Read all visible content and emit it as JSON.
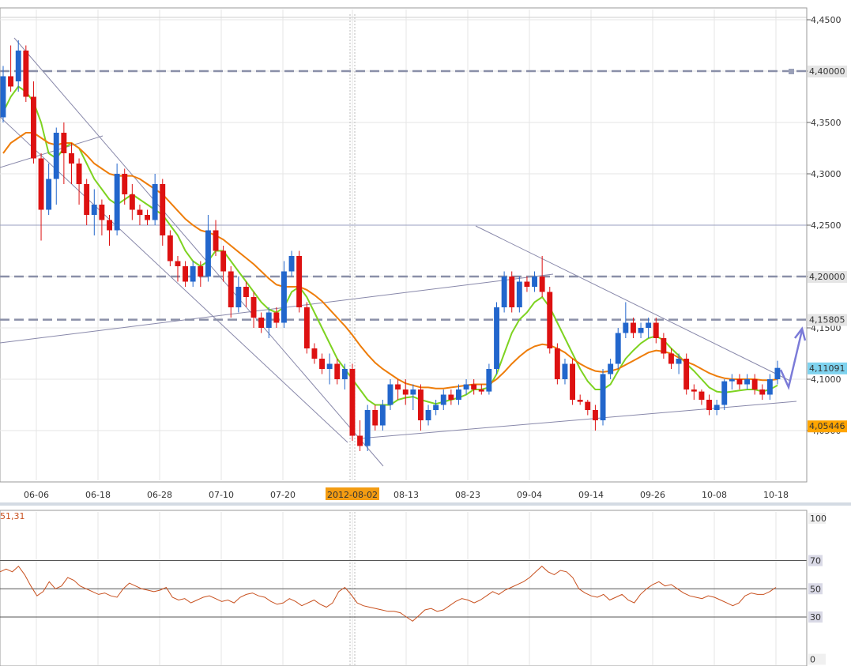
{
  "chart_data": [
    {
      "type": "candlestick",
      "x_axis": {
        "tick_labels": [
          "06-06",
          "06-18",
          "06-28",
          "07-10",
          "07-20",
          "2012-08-02",
          "08-13",
          "08-23",
          "09-04",
          "09-14",
          "09-26",
          "10-08",
          "10-18"
        ],
        "highlighted_label": "2012-08-02"
      },
      "y_axis": {
        "min": 4.02,
        "max": 4.45,
        "tick_labels": [
          "4,4500",
          "4,4000",
          "4,3500",
          "4,3000",
          "4,2500",
          "4,2000",
          "4,1500",
          "4,1000",
          "4,0500"
        ],
        "ticks": [
          4.45,
          4.4,
          4.35,
          4.3,
          4.25,
          4.2,
          4.15,
          4.1,
          4.05
        ]
      },
      "price_tags": [
        {
          "label": "4,40000",
          "value": 4.4,
          "color": "#e5e5e5"
        },
        {
          "label": "4,20000",
          "value": 4.2,
          "color": "#e5e5e5"
        },
        {
          "label": "4,15805",
          "value": 4.15805,
          "color": "#e5e5e5"
        },
        {
          "label": "4,11091",
          "value": 4.11091,
          "color": "#7fd3ef"
        },
        {
          "label": "4,05446",
          "value": 4.05446,
          "color": "#ffa500"
        }
      ],
      "horizontal_lines": [
        {
          "value": 4.4,
          "style": "dashed"
        },
        {
          "value": 4.2,
          "style": "dashed"
        },
        {
          "value": 4.158,
          "style": "dashed"
        },
        {
          "value": 4.25,
          "style": "solid"
        }
      ],
      "candles": [
        [
          4.355,
          4.405,
          4.35,
          4.395
        ],
        [
          4.395,
          4.425,
          4.38,
          4.385
        ],
        [
          4.39,
          4.43,
          4.38,
          4.42
        ],
        [
          4.42,
          4.425,
          4.37,
          4.375
        ],
        [
          4.375,
          4.39,
          4.31,
          4.315
        ],
        [
          4.315,
          4.32,
          4.235,
          4.265
        ],
        [
          4.265,
          4.31,
          4.26,
          4.295
        ],
        [
          4.295,
          4.345,
          4.27,
          4.34
        ],
        [
          4.34,
          4.35,
          4.29,
          4.32
        ],
        [
          4.32,
          4.33,
          4.29,
          4.31
        ],
        [
          4.31,
          4.315,
          4.27,
          4.29
        ],
        [
          4.29,
          4.295,
          4.25,
          4.26
        ],
        [
          4.26,
          4.285,
          4.24,
          4.27
        ],
        [
          4.27,
          4.275,
          4.24,
          4.255
        ],
        [
          4.255,
          4.26,
          4.23,
          4.245
        ],
        [
          4.245,
          4.31,
          4.24,
          4.3
        ],
        [
          4.3,
          4.305,
          4.27,
          4.28
        ],
        [
          4.28,
          4.29,
          4.255,
          4.265
        ],
        [
          4.265,
          4.27,
          4.25,
          4.26
        ],
        [
          4.26,
          4.265,
          4.25,
          4.255
        ],
        [
          4.255,
          4.3,
          4.25,
          4.29
        ],
        [
          4.29,
          4.295,
          4.23,
          4.24
        ],
        [
          4.24,
          4.245,
          4.21,
          4.215
        ],
        [
          4.215,
          4.22,
          4.195,
          4.21
        ],
        [
          4.21,
          4.215,
          4.19,
          4.195
        ],
        [
          4.195,
          4.215,
          4.19,
          4.21
        ],
        [
          4.21,
          4.215,
          4.19,
          4.2
        ],
        [
          4.2,
          4.26,
          4.195,
          4.245
        ],
        [
          4.245,
          4.255,
          4.22,
          4.225
        ],
        [
          4.225,
          4.23,
          4.195,
          4.205
        ],
        [
          4.205,
          4.21,
          4.16,
          4.17
        ],
        [
          4.17,
          4.2,
          4.165,
          4.19
        ],
        [
          4.19,
          4.195,
          4.17,
          4.18
        ],
        [
          4.18,
          4.185,
          4.15,
          4.16
        ],
        [
          4.16,
          4.165,
          4.145,
          4.15
        ],
        [
          4.15,
          4.17,
          4.14,
          4.165
        ],
        [
          4.165,
          4.17,
          4.15,
          4.155
        ],
        [
          4.155,
          4.215,
          4.15,
          4.205
        ],
        [
          4.205,
          4.225,
          4.2,
          4.22
        ],
        [
          4.22,
          4.225,
          4.165,
          4.17
        ],
        [
          4.17,
          4.175,
          4.125,
          4.13
        ],
        [
          4.13,
          4.135,
          4.115,
          4.12
        ],
        [
          4.12,
          4.125,
          4.105,
          4.11
        ],
        [
          4.11,
          4.125,
          4.095,
          4.115
        ],
        [
          4.115,
          4.12,
          4.095,
          4.1
        ],
        [
          4.1,
          4.115,
          4.09,
          4.11
        ],
        [
          4.11,
          4.115,
          4.04,
          4.045
        ],
        [
          4.045,
          4.06,
          4.03,
          4.035
        ],
        [
          4.035,
          4.075,
          4.03,
          4.07
        ],
        [
          4.07,
          4.075,
          4.05,
          4.055
        ],
        [
          4.055,
          4.08,
          4.05,
          4.075
        ],
        [
          4.075,
          4.1,
          4.07,
          4.095
        ],
        [
          4.095,
          4.1,
          4.08,
          4.09
        ],
        [
          4.09,
          4.1,
          4.075,
          4.085
        ],
        [
          4.085,
          4.095,
          4.07,
          4.09
        ],
        [
          4.09,
          4.095,
          4.05,
          4.06
        ],
        [
          4.06,
          4.075,
          4.055,
          4.07
        ],
        [
          4.07,
          4.08,
          4.065,
          4.075
        ],
        [
          4.075,
          4.09,
          4.07,
          4.085
        ],
        [
          4.085,
          4.09,
          4.075,
          4.08
        ],
        [
          4.08,
          4.095,
          4.075,
          4.09
        ],
        [
          4.09,
          4.1,
          4.085,
          4.095
        ],
        [
          4.095,
          4.1,
          4.085,
          4.09
        ],
        [
          4.09,
          4.095,
          4.085,
          4.088
        ],
        [
          4.088,
          4.115,
          4.085,
          4.11
        ],
        [
          4.11,
          4.175,
          4.105,
          4.17
        ],
        [
          4.17,
          4.205,
          4.165,
          4.2
        ],
        [
          4.2,
          4.205,
          4.165,
          4.17
        ],
        [
          4.17,
          4.2,
          4.165,
          4.195
        ],
        [
          4.195,
          4.2,
          4.185,
          4.19
        ],
        [
          4.19,
          4.205,
          4.185,
          4.2
        ],
        [
          4.2,
          4.22,
          4.18,
          4.185
        ],
        [
          4.185,
          4.19,
          4.125,
          4.13
        ],
        [
          4.13,
          4.135,
          4.095,
          4.1
        ],
        [
          4.1,
          4.12,
          4.095,
          4.115
        ],
        [
          4.115,
          4.12,
          4.075,
          4.08
        ],
        [
          4.08,
          4.085,
          4.075,
          4.078
        ],
        [
          4.078,
          4.08,
          4.065,
          4.07
        ],
        [
          4.07,
          4.075,
          4.05,
          4.06
        ],
        [
          4.06,
          4.11,
          4.055,
          4.105
        ],
        [
          4.105,
          4.12,
          4.1,
          4.115
        ],
        [
          4.115,
          4.15,
          4.11,
          4.145
        ],
        [
          4.145,
          4.175,
          4.14,
          4.155
        ],
        [
          4.155,
          4.16,
          4.14,
          4.145
        ],
        [
          4.145,
          4.155,
          4.14,
          4.15
        ],
        [
          4.15,
          4.16,
          4.14,
          4.155
        ],
        [
          4.155,
          4.16,
          4.135,
          4.14
        ],
        [
          4.14,
          4.145,
          4.12,
          4.125
        ],
        [
          4.125,
          4.13,
          4.11,
          4.115
        ],
        [
          4.115,
          4.125,
          4.105,
          4.12
        ],
        [
          4.12,
          4.125,
          4.085,
          4.09
        ],
        [
          4.09,
          4.095,
          4.08,
          4.088
        ],
        [
          4.088,
          4.09,
          4.075,
          4.08
        ],
        [
          4.08,
          4.085,
          4.065,
          4.07
        ],
        [
          4.07,
          4.08,
          4.065,
          4.075
        ],
        [
          4.075,
          4.1,
          4.07,
          4.098
        ],
        [
          4.098,
          4.105,
          4.09,
          4.1
        ],
        [
          4.1,
          4.105,
          4.09,
          4.095
        ],
        [
          4.095,
          4.105,
          4.09,
          4.1
        ],
        [
          4.1,
          4.105,
          4.085,
          4.09
        ],
        [
          4.09,
          4.095,
          4.08,
          4.085
        ],
        [
          4.085,
          4.105,
          4.08,
          4.1
        ],
        [
          4.1,
          4.118,
          4.095,
          4.111
        ]
      ],
      "moving_averages": [
        {
          "color": "#7ed321",
          "values": [
            4.36,
            4.375,
            4.385,
            4.38,
            4.37,
            4.35,
            4.32,
            4.315,
            4.325,
            4.33,
            4.325,
            4.31,
            4.295,
            4.285,
            4.275,
            4.27,
            4.275,
            4.28,
            4.275,
            4.27,
            4.265,
            4.26,
            4.25,
            4.24,
            4.225,
            4.215,
            4.21,
            4.215,
            4.225,
            4.225,
            4.215,
            4.205,
            4.195,
            4.185,
            4.175,
            4.168,
            4.165,
            4.17,
            4.185,
            4.19,
            4.18,
            4.165,
            4.15,
            4.135,
            4.12,
            4.11,
            4.1,
            4.09,
            4.08,
            4.075,
            4.075,
            4.075,
            4.08,
            4.082,
            4.083,
            4.08,
            4.078,
            4.076,
            4.078,
            4.08,
            4.082,
            4.085,
            4.09,
            4.09,
            4.092,
            4.105,
            4.125,
            4.145,
            4.158,
            4.165,
            4.175,
            4.18,
            4.17,
            4.155,
            4.14,
            4.125,
            4.11,
            4.098,
            4.09,
            4.09,
            4.095,
            4.108,
            4.12,
            4.128,
            4.135,
            4.14,
            4.142,
            4.138,
            4.13,
            4.123,
            4.115,
            4.108,
            4.1,
            4.092,
            4.088,
            4.087,
            4.088,
            4.089,
            4.09,
            4.09,
            4.088,
            4.09,
            4.094
          ]
        },
        {
          "color": "#ee7d0a",
          "values": [
            4.32,
            4.33,
            4.335,
            4.34,
            4.34,
            4.335,
            4.33,
            4.328,
            4.33,
            4.33,
            4.325,
            4.318,
            4.31,
            4.305,
            4.3,
            4.298,
            4.298,
            4.298,
            4.295,
            4.29,
            4.285,
            4.28,
            4.272,
            4.264,
            4.256,
            4.25,
            4.245,
            4.243,
            4.24,
            4.236,
            4.23,
            4.224,
            4.218,
            4.212,
            4.205,
            4.198,
            4.192,
            4.19,
            4.19,
            4.19,
            4.187,
            4.182,
            4.176,
            4.168,
            4.16,
            4.152,
            4.143,
            4.133,
            4.124,
            4.116,
            4.11,
            4.105,
            4.1,
            4.096,
            4.094,
            4.092,
            4.092,
            4.091,
            4.091,
            4.092,
            4.093,
            4.094,
            4.095,
            4.095,
            4.095,
            4.1,
            4.107,
            4.115,
            4.122,
            4.128,
            4.132,
            4.134,
            4.133,
            4.13,
            4.126,
            4.12,
            4.115,
            4.111,
            4.108,
            4.107,
            4.108,
            4.11,
            4.114,
            4.118,
            4.122,
            4.126,
            4.128,
            4.127,
            4.125,
            4.121,
            4.117,
            4.114,
            4.11,
            4.106,
            4.103,
            4.101,
            4.1,
            4.1,
            4.1,
            4.1,
            4.099,
            4.099,
            4.1
          ]
        }
      ]
    },
    {
      "type": "line",
      "indicator_value_label": "51,31",
      "series_color": "#c8501e",
      "y_axis": {
        "min": 0,
        "max": 100,
        "tick_labels": [
          "100",
          "70",
          "50",
          "30",
          "0"
        ],
        "ticks": [
          100,
          70,
          50,
          30,
          0
        ]
      },
      "levels": [
        70,
        50,
        30
      ],
      "values": [
        62,
        64,
        62,
        66,
        60,
        52,
        45,
        48,
        55,
        50,
        52,
        58,
        56,
        52,
        50,
        48,
        46,
        47,
        45,
        44,
        50,
        54,
        52,
        50,
        49,
        48,
        49,
        51,
        44,
        42,
        43,
        40,
        42,
        44,
        45,
        43,
        41,
        42,
        40,
        44,
        46,
        47,
        45,
        44,
        41,
        39,
        40,
        43,
        41,
        38,
        40,
        42,
        39,
        37,
        40,
        48,
        51,
        46,
        40,
        38,
        37,
        36,
        35,
        34,
        34,
        33,
        30,
        27,
        31,
        35,
        36,
        34,
        35,
        38,
        41,
        43,
        42,
        40,
        42,
        45,
        48,
        46,
        49,
        51,
        53,
        55,
        58,
        62,
        66,
        62,
        60,
        63,
        62,
        58,
        50,
        47,
        45,
        44,
        46,
        42,
        44,
        46,
        42,
        40,
        46,
        50,
        53,
        55,
        52,
        53,
        50,
        47,
        45,
        44,
        43,
        45,
        44,
        42,
        40,
        38,
        40,
        45,
        47,
        46,
        46,
        48,
        51
      ]
    }
  ]
}
